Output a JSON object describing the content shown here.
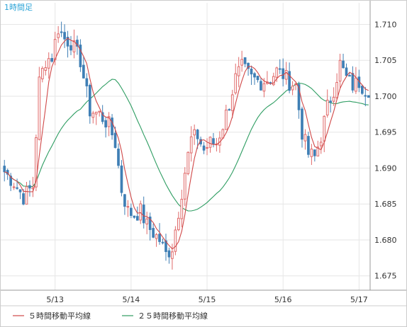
{
  "chart_data": {
    "type": "candlestick",
    "timeframe_label": "1時間足",
    "ylim": [
      1.673,
      1.713
    ],
    "yticks": [
      1.675,
      1.68,
      1.685,
      1.69,
      1.695,
      1.7,
      1.705,
      1.71
    ],
    "ytick_labels": [
      "1.675",
      "1.680",
      "1.685",
      "1.690",
      "1.695",
      "1.700",
      "1.705",
      "1.710"
    ],
    "xtick_labels": [
      "5/13",
      "5/14",
      "5/15",
      "5/16",
      "5/17"
    ],
    "xtick_index": [
      16,
      40,
      64,
      88,
      112
    ],
    "grid": true,
    "colors": {
      "up_candle": "#e06a6a",
      "down_candle": "#3f7fb5",
      "ma5": "#d04848",
      "ma25": "#2e9d62",
      "grid": "#e6e6e6",
      "axis": "#999999",
      "timeframe_label": "#2aa3d6"
    },
    "anchors": {
      "index": [
        0,
        3,
        6,
        9,
        11,
        13,
        15,
        17,
        19,
        21,
        24,
        27,
        30,
        33,
        35,
        37,
        39,
        41,
        43,
        45,
        47,
        49,
        51,
        53,
        55,
        57,
        59,
        61,
        63,
        65,
        67,
        69,
        71,
        73,
        75,
        78,
        81,
        84,
        86,
        88,
        90,
        92,
        94,
        96,
        98,
        100,
        102,
        104,
        106,
        108,
        110,
        112,
        114
      ],
      "price": [
        1.6895,
        1.688,
        1.686,
        1.6875,
        1.702,
        1.705,
        1.7055,
        1.7095,
        1.708,
        1.7075,
        1.705,
        1.698,
        1.6975,
        1.696,
        1.6935,
        1.687,
        1.684,
        1.6835,
        1.684,
        1.682,
        1.681,
        1.68,
        1.678,
        1.679,
        1.684,
        1.6895,
        1.694,
        1.6945,
        1.6925,
        1.6935,
        1.6935,
        1.696,
        1.699,
        1.7025,
        1.704,
        1.7025,
        1.702,
        1.7025,
        1.7035,
        1.703,
        1.702,
        1.7015,
        1.695,
        1.692,
        1.6915,
        1.6945,
        1.6985,
        1.701,
        1.7045,
        1.7025,
        1.7015,
        1.702,
        1.701
      ]
    },
    "ma5_label": "５時間移動平均線",
    "ma25_label": "２５時間移動平均線"
  },
  "legend": {
    "ma5": "５時間移動平均線",
    "ma25": "２５時間移動平均線"
  }
}
